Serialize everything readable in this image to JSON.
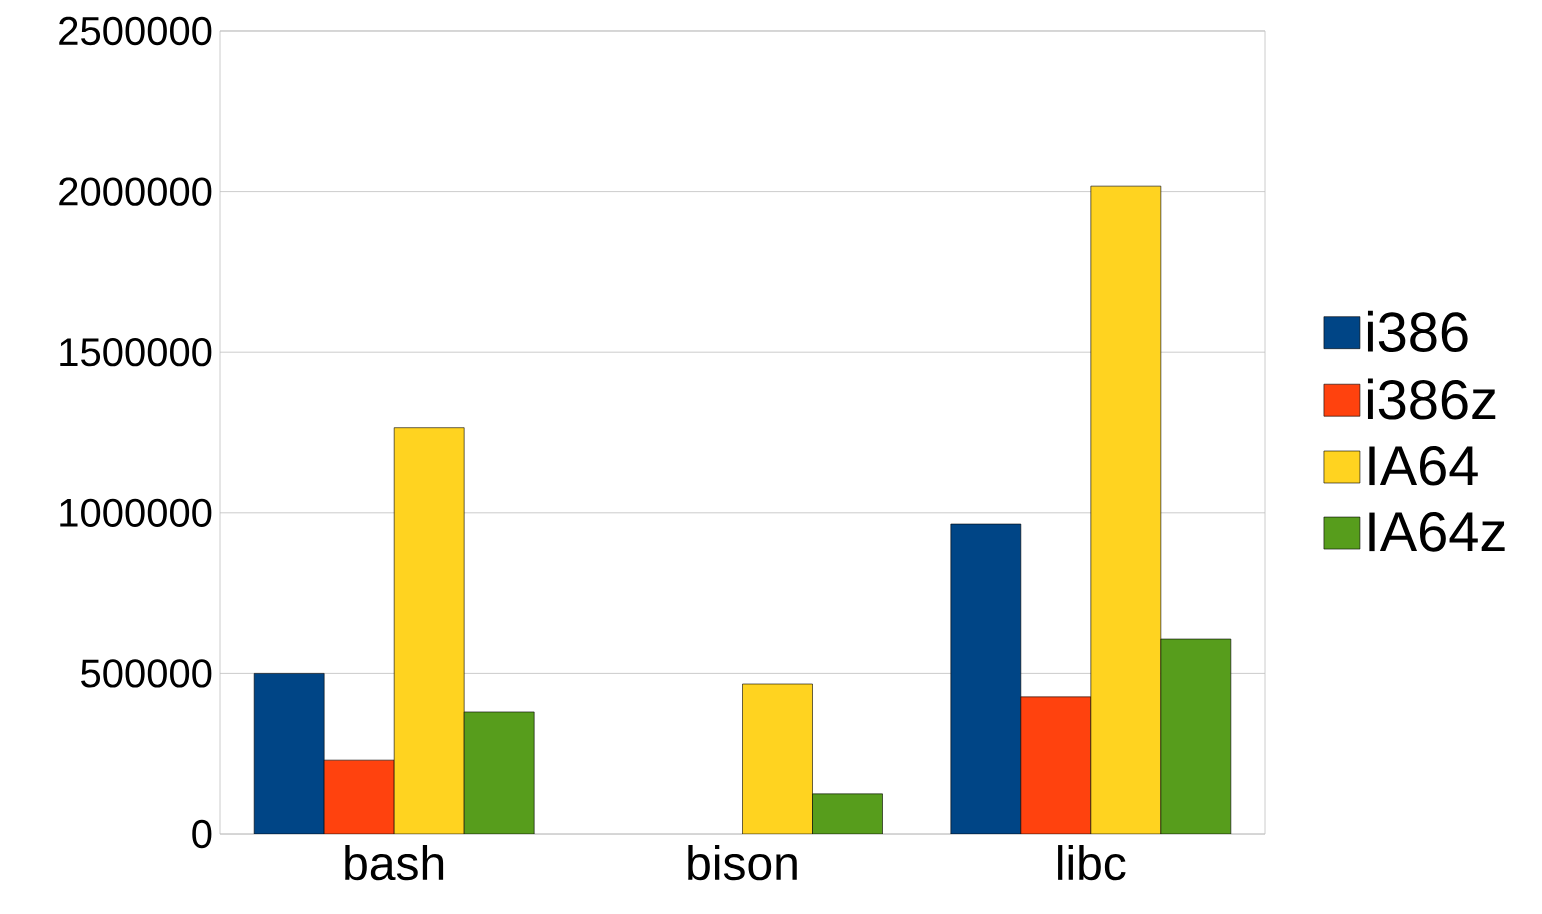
{
  "chart_data": {
    "type": "bar",
    "categories": [
      "bash",
      "bison",
      "libc"
    ],
    "series": [
      {
        "name": "i386",
        "color": "#004586",
        "values": [
          500000,
          null,
          965000
        ]
      },
      {
        "name": "i386z",
        "color": "#ff420e",
        "values": [
          230000,
          null,
          427000
        ]
      },
      {
        "name": "IA64",
        "color": "#ffd320",
        "values": [
          1265000,
          467000,
          2017000
        ]
      },
      {
        "name": "IA64z",
        "color": "#579d1c",
        "values": [
          380000,
          125000,
          607000
        ]
      }
    ],
    "ylim": [
      0,
      2500000
    ],
    "yticks": [
      0,
      500000,
      1000000,
      1500000,
      2000000,
      2500000
    ],
    "grid": "y",
    "legend": "right"
  }
}
